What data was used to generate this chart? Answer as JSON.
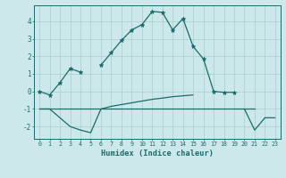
{
  "xlabel": "Humidex (Indice chaleur)",
  "background_color": "#cde8ea",
  "grid_color": "#aacdd0",
  "line_color": "#1a6b6b",
  "x": [
    0,
    1,
    2,
    3,
    4,
    5,
    6,
    7,
    8,
    9,
    10,
    11,
    12,
    13,
    14,
    15,
    16,
    17,
    18,
    19,
    20,
    21,
    22,
    23
  ],
  "line1_y": [
    0.0,
    -0.2,
    0.5,
    1.3,
    1.1,
    null,
    1.5,
    2.2,
    2.9,
    3.5,
    3.8,
    4.55,
    4.5,
    3.5,
    4.15,
    2.55,
    1.85,
    0.0,
    -0.05,
    -0.05,
    null,
    null,
    null,
    null
  ],
  "line1_skip5": true,
  "line2_y": [
    -1.0,
    -1.0,
    -1.5,
    -2.0,
    -2.2,
    -2.35,
    -1.0,
    -0.85,
    -0.75,
    -0.65,
    -0.55,
    -0.45,
    -0.38,
    -0.3,
    -0.25,
    -0.2,
    null,
    null,
    null,
    null,
    null,
    null,
    null,
    null
  ],
  "line3_y": [
    -1.0,
    -1.0,
    -1.0,
    -1.0,
    -1.0,
    -1.0,
    -1.0,
    -1.0,
    -1.0,
    -1.0,
    -1.0,
    -1.0,
    -1.0,
    -1.0,
    -1.0,
    -1.0,
    -1.0,
    -1.0,
    -1.0,
    -1.0,
    -1.0,
    -1.0,
    null,
    null
  ],
  "line4a_y": [
    null,
    null,
    null,
    null,
    null,
    null,
    null,
    null,
    null,
    null,
    null,
    null,
    null,
    null,
    null,
    null,
    null,
    null,
    null,
    null,
    -1.0,
    -2.2,
    -1.5,
    -1.5
  ],
  "line4b_y": [
    null,
    null,
    null,
    null,
    null,
    null,
    null,
    null,
    null,
    null,
    null,
    null,
    null,
    null,
    null,
    null,
    null,
    null,
    null,
    null,
    null,
    -1.0,
    null,
    null
  ],
  "ylim": [
    -2.7,
    4.9
  ],
  "xlim": [
    -0.5,
    23.5
  ],
  "yticks": [
    -2,
    -1,
    0,
    1,
    2,
    3,
    4
  ],
  "xticks": [
    0,
    1,
    2,
    3,
    4,
    5,
    6,
    7,
    8,
    9,
    10,
    11,
    12,
    13,
    14,
    15,
    16,
    17,
    18,
    19,
    20,
    21,
    22,
    23
  ]
}
